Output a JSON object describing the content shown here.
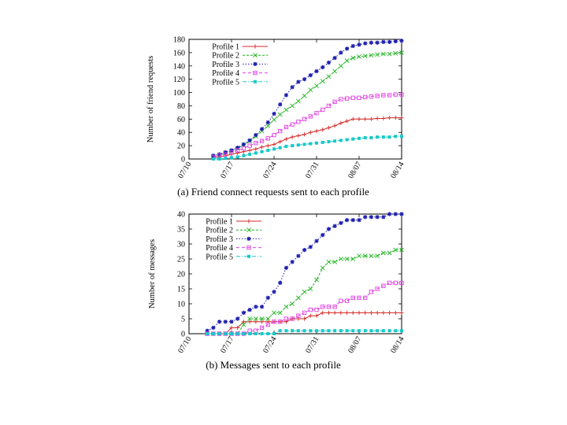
{
  "panels": [
    {
      "caption": "(a) Friend connect requests sent to each profile",
      "chart_data": {
        "type": "line",
        "ylabel": "Number of friend requests",
        "xlabel": "",
        "ylim": [
          0,
          180
        ],
        "yticks": [
          0,
          20,
          40,
          60,
          80,
          100,
          120,
          140,
          160,
          180
        ],
        "xlim": [
          0,
          35
        ],
        "xticks": [
          {
            "pos": 0,
            "label": "07/10"
          },
          {
            "pos": 7,
            "label": "07/17"
          },
          {
            "pos": 14,
            "label": "07/24"
          },
          {
            "pos": 21,
            "label": "07/31"
          },
          {
            "pos": 28,
            "label": "08/07"
          },
          {
            "pos": 35,
            "label": "08/14"
          }
        ],
        "grid": false,
        "legend": "top-left",
        "x": [
          4,
          5,
          6,
          7,
          8,
          9,
          10,
          11,
          12,
          13,
          14,
          15,
          16,
          17,
          18,
          19,
          20,
          21,
          22,
          23,
          24,
          25,
          26,
          27,
          28,
          29,
          30,
          31,
          32,
          33,
          34,
          35
        ],
        "series": [
          {
            "name": "Profile 1",
            "color": "#d62a2a",
            "marker": "plus",
            "dash": "",
            "values": [
              2,
              3,
              5,
              7,
              9,
              11,
              13,
              15,
              18,
              20,
              22,
              26,
              30,
              33,
              35,
              37,
              40,
              42,
              44,
              47,
              50,
              54,
              57,
              60,
              60,
              60,
              60,
              61,
              61,
              62,
              62,
              62
            ]
          },
          {
            "name": "Profile 2",
            "color": "#22b522",
            "marker": "x",
            "dash": "3,2",
            "values": [
              4,
              6,
              9,
              12,
              16,
              21,
              27,
              34,
              42,
              50,
              59,
              67,
              74,
              80,
              87,
              95,
              104,
              110,
              117,
              124,
              132,
              140,
              148,
              152,
              154,
              155,
              156,
              157,
              158,
              158,
              159,
              160
            ]
          },
          {
            "name": "Profile 3",
            "color": "#1f1fb0",
            "marker": "star",
            "dash": "1.5,2",
            "values": [
              5,
              7,
              10,
              13,
              17,
              22,
              28,
              36,
              45,
              55,
              68,
              82,
              96,
              108,
              116,
              120,
              126,
              132,
              138,
              145,
              152,
              160,
              166,
              170,
              172,
              174,
              175,
              175,
              176,
              176,
              177,
              178
            ]
          },
          {
            "name": "Profile 4",
            "color": "#e040e0",
            "marker": "square",
            "dash": "4,3",
            "values": [
              3,
              5,
              7,
              10,
              13,
              16,
              20,
              24,
              27,
              31,
              36,
              42,
              48,
              52,
              56,
              60,
              64,
              69,
              74,
              80,
              86,
              90,
              91,
              92,
              92,
              93,
              94,
              95,
              96,
              96,
              97,
              97
            ]
          },
          {
            "name": "Profile 5",
            "color": "#18c8c8",
            "marker": "filledsquare",
            "dash": "5,2,1,2",
            "values": [
              0,
              0,
              1,
              2,
              3,
              5,
              7,
              9,
              11,
              13,
              15,
              17,
              19,
              20,
              21,
              22,
              23,
              24,
              25,
              26,
              27,
              28,
              29,
              30,
              31,
              32,
              32,
              33,
              33,
              33,
              34,
              34
            ]
          }
        ]
      }
    },
    {
      "caption": "(b) Messages sent to each profile",
      "chart_data": {
        "type": "line",
        "ylabel": "Number of messages",
        "xlabel": "",
        "ylim": [
          0,
          40
        ],
        "yticks": [
          0,
          5,
          10,
          15,
          20,
          25,
          30,
          35,
          40
        ],
        "xlim": [
          0,
          35
        ],
        "xticks": [
          {
            "pos": 0,
            "label": "07/10"
          },
          {
            "pos": 7,
            "label": "07/17"
          },
          {
            "pos": 14,
            "label": "07/24"
          },
          {
            "pos": 21,
            "label": "07/31"
          },
          {
            "pos": 28,
            "label": "08/07"
          },
          {
            "pos": 35,
            "label": "08/14"
          }
        ],
        "grid": false,
        "legend": "top-left",
        "x": [
          3,
          4,
          5,
          6,
          7,
          8,
          9,
          10,
          11,
          12,
          13,
          14,
          15,
          16,
          17,
          18,
          19,
          20,
          21,
          22,
          23,
          24,
          25,
          26,
          27,
          28,
          29,
          30,
          31,
          32,
          33,
          34,
          35
        ],
        "series": [
          {
            "name": "Profile 1",
            "color": "#d62a2a",
            "marker": "plus",
            "dash": "",
            "values": [
              0,
              0,
              0,
              0,
              2,
              2,
              4,
              4,
              4,
              4,
              4,
              4,
              4,
              4,
              5,
              5,
              5,
              6,
              6,
              7,
              7,
              7,
              7,
              7,
              7,
              7,
              7,
              7,
              7,
              7,
              7,
              7,
              7
            ]
          },
          {
            "name": "Profile 2",
            "color": "#22b522",
            "marker": "x",
            "dash": "3,2",
            "values": [
              0,
              0,
              0,
              0,
              0,
              0,
              3,
              5,
              5,
              5,
              5,
              7,
              7,
              9,
              10,
              12,
              14,
              15,
              18,
              22,
              24,
              24,
              25,
              25,
              25,
              26,
              26,
              26,
              26,
              27,
              27,
              28,
              28
            ]
          },
          {
            "name": "Profile 3",
            "color": "#1f1fb0",
            "marker": "star",
            "dash": "1.5,2",
            "values": [
              1,
              2,
              4,
              4,
              4,
              5,
              7,
              8,
              9,
              9,
              12,
              14,
              17,
              22,
              24,
              26,
              28,
              29,
              31,
              33,
              35,
              36,
              37,
              38,
              38,
              38,
              39,
              39,
              39,
              39,
              40,
              40,
              40
            ]
          },
          {
            "name": "Profile 4",
            "color": "#e040e0",
            "marker": "square",
            "dash": "4,3",
            "values": [
              0,
              0,
              0,
              0,
              0,
              0,
              0,
              1,
              1,
              2,
              3,
              4,
              4,
              5,
              5,
              6,
              7,
              8,
              8,
              9,
              9,
              9,
              11,
              11,
              12,
              12,
              12,
              14,
              15,
              16,
              17,
              17,
              17
            ]
          },
          {
            "name": "Profile 5",
            "color": "#18c8c8",
            "marker": "filledsquare",
            "dash": "5,2,1,2",
            "values": [
              0,
              0,
              0,
              0,
              0,
              0,
              0,
              0,
              0,
              0,
              0,
              0,
              1,
              1,
              1,
              1,
              1,
              1,
              1,
              1,
              1,
              1,
              1,
              1,
              1,
              1,
              1,
              1,
              1,
              1,
              1,
              1,
              1
            ]
          }
        ]
      }
    }
  ]
}
